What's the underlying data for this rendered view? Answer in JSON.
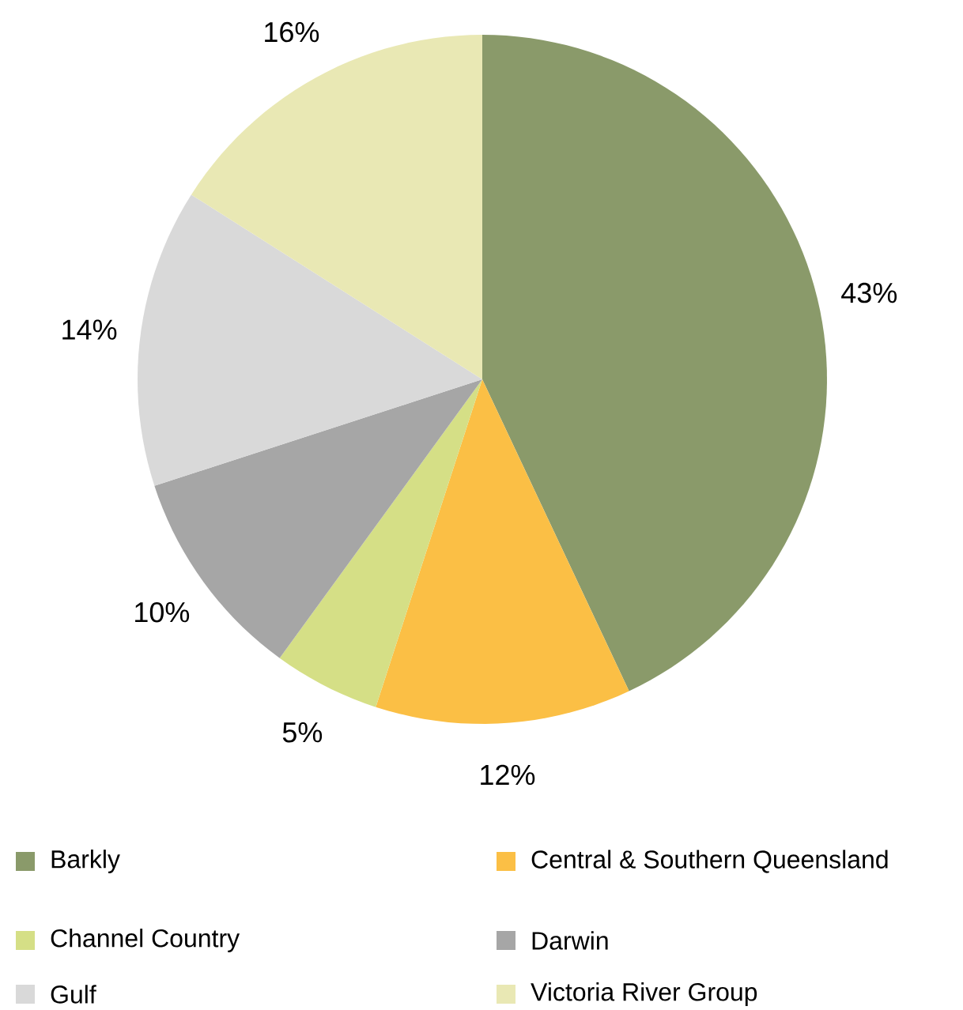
{
  "chart_data": {
    "type": "pie",
    "categories": [
      "Barkly",
      "Central & Southern Queensland",
      "Channel Country",
      "Darwin",
      "Gulf",
      "Victoria River Group"
    ],
    "values": [
      43,
      12,
      5,
      10,
      14,
      16
    ],
    "colors": [
      "#8a9a6a",
      "#fbbf45",
      "#d5df86",
      "#a6a6a6",
      "#d9d9d9",
      "#e9e8b4"
    ],
    "value_labels": [
      "43%",
      "12%",
      "5%",
      "10%",
      "14%",
      "16%"
    ],
    "legend": "bottom"
  }
}
